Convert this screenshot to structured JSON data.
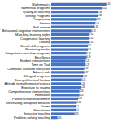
{
  "chart_data": {
    "type": "bar",
    "orientation": "horizontal",
    "categories": [
      "Mathematics",
      "Numerical programs",
      "Quality of Teaching",
      "Writing Programs",
      "Cooperation",
      "Interest",
      "Self-esteem",
      "Behavioral cognitive interventions",
      "Matching learning styles",
      "Cooperative learning",
      "Tutoring",
      "Social skill programs",
      "Mastering modes",
      "Integrated curriculum programs",
      "Excellence",
      "Student interventions",
      "Time on Task",
      "Computer assisted instruction",
      "Adjunct aids",
      "Bilingual programs",
      "Principals/school leaders",
      "Attitude to mathematics/science",
      "Exposure to reading",
      "Comprehensive interventions",
      "Homework",
      "Parent/school involvement",
      "Decreasing disruptive behavior",
      "Drama",
      "Simulations",
      "Inductive teaching",
      "Problem-solving teaching"
    ],
    "values": [
      0.45,
      0.42,
      0.38,
      0.38,
      0.37,
      0.36,
      0.35,
      0.33,
      0.31,
      0.31,
      0.31,
      0.3,
      0.3,
      0.29,
      0.29,
      0.28,
      0.28,
      0.27,
      0.27,
      0.26,
      0.25,
      0.24,
      0.24,
      0.23,
      0.23,
      0.22,
      0.21,
      0.2,
      0.2,
      0.19,
      0.05
    ],
    "color": "#4472c4",
    "xlim": [
      0,
      0.5
    ],
    "tick_labels": "y",
    "data_labels": true
  }
}
